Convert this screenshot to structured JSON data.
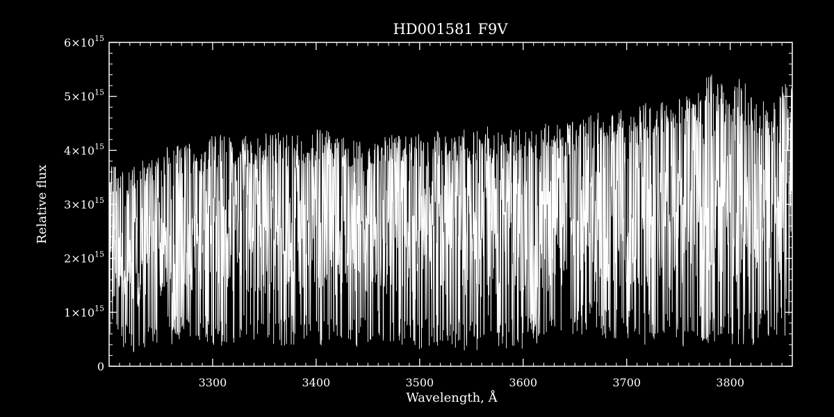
{
  "chart_data": {
    "type": "line",
    "title": "HD001581  F9V",
    "xlabel": "Wavelength, Å",
    "ylabel": "Relative flux",
    "xlim": [
      3200,
      3860
    ],
    "ylim": [
      0,
      6000000000000000.0
    ],
    "x_ticks": [
      {
        "value": 3300,
        "label": "3300"
      },
      {
        "value": 3400,
        "label": "3400"
      },
      {
        "value": 3500,
        "label": "3500"
      },
      {
        "value": 3600,
        "label": "3600"
      },
      {
        "value": 3700,
        "label": "3700"
      },
      {
        "value": 3800,
        "label": "3800"
      }
    ],
    "y_ticks": [
      {
        "value": 0,
        "label": "0",
        "exp": ""
      },
      {
        "value": 1000000000000000.0,
        "label": "1×10",
        "exp": "15"
      },
      {
        "value": 2000000000000000.0,
        "label": "2×10",
        "exp": "15"
      },
      {
        "value": 3000000000000000.0,
        "label": "3×10",
        "exp": "15"
      },
      {
        "value": 4000000000000000.0,
        "label": "4×10",
        "exp": "15"
      },
      {
        "value": 5000000000000000.0,
        "label": "5×10",
        "exp": "15"
      },
      {
        "value": 6000000000000000.0,
        "label": "6×10",
        "exp": "15"
      }
    ],
    "x_minor_step": 10,
    "y_minor_step": 200000000000000.0,
    "grid": false,
    "colors": {
      "background": "#000000",
      "foreground": "#ffffff"
    },
    "series": [
      {
        "x": [
          3200,
          3210,
          3220,
          3230,
          3240,
          3250,
          3260,
          3270,
          3280,
          3290,
          3300,
          3310,
          3320,
          3330,
          3340,
          3350,
          3360,
          3370,
          3380,
          3390,
          3400,
          3410,
          3420,
          3430,
          3440,
          3450,
          3460,
          3470,
          3480,
          3490,
          3500,
          3510,
          3520,
          3530,
          3540,
          3550,
          3560,
          3570,
          3580,
          3590,
          3600,
          3610,
          3620,
          3630,
          3640,
          3650,
          3660,
          3670,
          3680,
          3690,
          3700,
          3710,
          3720,
          3730,
          3740,
          3750,
          3760,
          3770,
          3780,
          3790,
          3800,
          3810,
          3820,
          3830,
          3840,
          3850,
          3858
        ],
        "upper": [
          3900000000000000.0,
          3600000000000000.0,
          3700000000000000.0,
          3800000000000000.0,
          3900000000000000.0,
          4100000000000000.0,
          4200000000000000.0,
          4100000000000000.0,
          4200000000000000.0,
          4100000000000000.0,
          4300000000000000.0,
          4300000000000000.0,
          4200000000000000.0,
          4300000000000000.0,
          4300000000000000.0,
          4300000000000000.0,
          4400000000000000.0,
          4300000000000000.0,
          4300000000000000.0,
          4200000000000000.0,
          4400000000000000.0,
          4400000000000000.0,
          4300000000000000.0,
          4300000000000000.0,
          4200000000000000.0,
          4200000000000000.0,
          4200000000000000.0,
          4300000000000000.0,
          4300000000000000.0,
          4300000000000000.0,
          4300000000000000.0,
          4300000000000000.0,
          4400000000000000.0,
          4300000000000000.0,
          4400000000000000.0,
          4400000000000000.0,
          4500000000000000.0,
          4400000000000000.0,
          4300000000000000.0,
          4400000000000000.0,
          4400000000000000.0,
          4400000000000000.0,
          4500000000000000.0,
          4500000000000000.0,
          4500000000000000.0,
          4600000000000000.0,
          4700000000000000.0,
          4700000000000000.0,
          4700000000000000.0,
          4700000000000000.0,
          4800000000000000.0,
          4800000000000000.0,
          4900000000000000.0,
          4900000000000000.0,
          4900000000000000.0,
          5000000000000000.0,
          5000000000000000.0,
          5100000000000000.0,
          5500000000000000.0,
          5300000000000000.0,
          5000000000000000.0,
          5400000000000000.0,
          5100000000000000.0,
          5000000000000000.0,
          4800000000000000.0,
          5300000000000000.0,
          5200000000000000.0
        ],
        "lower": [
          400000000000000.0,
          300000000000000.0,
          200000000000000.0,
          200000000000000.0,
          300000000000000.0,
          300000000000000.0,
          300000000000000.0,
          400000000000000.0,
          300000000000000.0,
          400000000000000.0,
          300000000000000.0,
          300000000000000.0,
          300000000000000.0,
          400000000000000.0,
          300000000000000.0,
          300000000000000.0,
          300000000000000.0,
          300000000000000.0,
          300000000000000.0,
          300000000000000.0,
          300000000000000.0,
          300000000000000.0,
          300000000000000.0,
          300000000000000.0,
          200000000000000.0,
          300000000000000.0,
          400000000000000.0,
          300000000000000.0,
          300000000000000.0,
          200000000000000.0,
          200000000000000.0,
          300000000000000.0,
          300000000000000.0,
          300000000000000.0,
          200000000000000.0,
          200000000000000.0,
          200000000000000.0,
          300000000000000.0,
          200000000000000.0,
          300000000000000.0,
          200000000000000.0,
          300000000000000.0,
          300000000000000.0,
          200000000000000.0,
          300000000000000.0,
          500000000000000.0,
          500000000000000.0,
          500000000000000.0,
          400000000000000.0,
          400000000000000.0,
          300000000000000.0,
          300000000000000.0,
          300000000000000.0,
          300000000000000.0,
          200000000000000.0,
          200000000000000.0,
          300000000000000.0,
          300000000000000.0,
          300000000000000.0,
          200000000000000.0,
          300000000000000.0,
          200000000000000.0,
          200000000000000.0,
          300000000000000.0,
          200000000000000.0,
          400000000000000.0,
          500000000000000.0
        ]
      }
    ]
  }
}
